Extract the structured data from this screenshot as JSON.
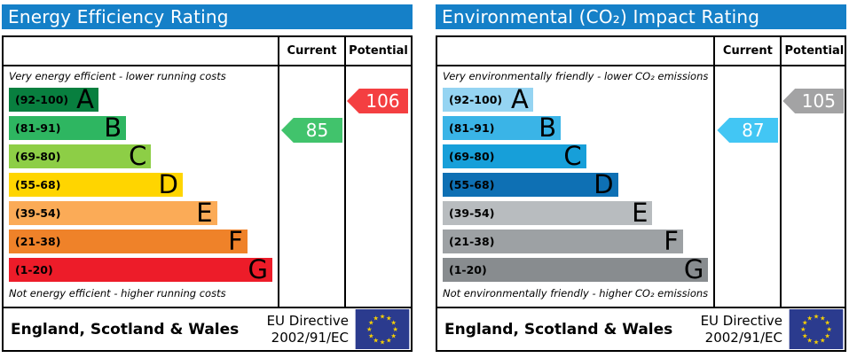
{
  "colors": {
    "header_bg": "#1580c8",
    "eu_flag_bg": "#2b3b8e",
    "eu_star": "#fad201"
  },
  "panels": [
    {
      "title": "Energy Efficiency Rating",
      "header": {
        "current": "Current",
        "potential": "Potential"
      },
      "top_label": "Very energy efficient - lower running costs",
      "bottom_label": "Not energy efficient - higher running costs",
      "bands": [
        {
          "range": "(92-100)",
          "letter": "A",
          "color": "#087f3f",
          "width_pct": 34
        },
        {
          "range": "(81-91)",
          "letter": "B",
          "color": "#2eb661",
          "width_pct": 44.5
        },
        {
          "range": "(69-80)",
          "letter": "C",
          "color": "#8dce46",
          "width_pct": 54
        },
        {
          "range": "(55-68)",
          "letter": "D",
          "color": "#ffd500",
          "width_pct": 66
        },
        {
          "range": "(39-54)",
          "letter": "E",
          "color": "#fbab57",
          "width_pct": 79
        },
        {
          "range": "(21-38)",
          "letter": "F",
          "color": "#ef8229",
          "width_pct": 90.5
        },
        {
          "range": "(1-20)",
          "letter": "G",
          "color": "#ed1c29",
          "width_pct": 100
        }
      ],
      "current": {
        "value": "85",
        "color": "#41c36c"
      },
      "potential": {
        "value": "106",
        "color": "#f43f41"
      },
      "footer": {
        "region": "England, Scotland & Wales",
        "eu_line1": "EU Directive",
        "eu_line2": "2002/91/EC"
      }
    },
    {
      "title": "Environmental (CO₂) Impact Rating",
      "header": {
        "current": "Current",
        "potential": "Potential"
      },
      "top_label": "Very environmentally friendly - lower CO₂ emissions",
      "bottom_label": "Not environmentally friendly - higher CO₂ emissions",
      "bands": [
        {
          "range": "(92-100)",
          "letter": "A",
          "color": "#95d4f2",
          "width_pct": 34
        },
        {
          "range": "(81-91)",
          "letter": "B",
          "color": "#3ab4e7",
          "width_pct": 44.5
        },
        {
          "range": "(69-80)",
          "letter": "C",
          "color": "#179fd9",
          "width_pct": 54
        },
        {
          "range": "(55-68)",
          "letter": "D",
          "color": "#0e70b4",
          "width_pct": 66
        },
        {
          "range": "(39-54)",
          "letter": "E",
          "color": "#b8bcbf",
          "width_pct": 79
        },
        {
          "range": "(21-38)",
          "letter": "F",
          "color": "#9da1a4",
          "width_pct": 90.5
        },
        {
          "range": "(1-20)",
          "letter": "G",
          "color": "#888c8f",
          "width_pct": 100
        }
      ],
      "current": {
        "value": "87",
        "color": "#42c6f4"
      },
      "potential": {
        "value": "105",
        "color": "#a3a3a4"
      },
      "footer": {
        "region": "England, Scotland & Wales",
        "eu_line1": "EU Directive",
        "eu_line2": "2002/91/EC"
      }
    }
  ],
  "chart_data": [
    {
      "type": "bar",
      "title": "Energy Efficiency Rating",
      "categories": [
        "A",
        "B",
        "C",
        "D",
        "E",
        "F",
        "G"
      ],
      "band_ranges": [
        "92-100",
        "81-91",
        "69-80",
        "55-68",
        "39-54",
        "21-38",
        "1-20"
      ],
      "bar_relative_widths_pct": [
        34,
        44.5,
        54,
        66,
        79,
        90.5,
        100
      ],
      "current_rating": 85,
      "current_band": "B",
      "potential_rating": 106,
      "potential_band": "A",
      "top_annotation": "Very energy efficient - lower running costs",
      "bottom_annotation": "Not energy efficient - higher running costs",
      "footer": "England, Scotland & Wales — EU Directive 2002/91/EC"
    },
    {
      "type": "bar",
      "title": "Environmental (CO₂) Impact Rating",
      "categories": [
        "A",
        "B",
        "C",
        "D",
        "E",
        "F",
        "G"
      ],
      "band_ranges": [
        "92-100",
        "81-91",
        "69-80",
        "55-68",
        "39-54",
        "21-38",
        "1-20"
      ],
      "bar_relative_widths_pct": [
        34,
        44.5,
        54,
        66,
        79,
        90.5,
        100
      ],
      "current_rating": 87,
      "current_band": "B",
      "potential_rating": 105,
      "potential_band": "A",
      "top_annotation": "Very environmentally friendly - lower CO₂ emissions",
      "bottom_annotation": "Not environmentally friendly - higher CO₂ emissions",
      "footer": "England, Scotland & Wales — EU Directive 2002/91/EC"
    }
  ]
}
